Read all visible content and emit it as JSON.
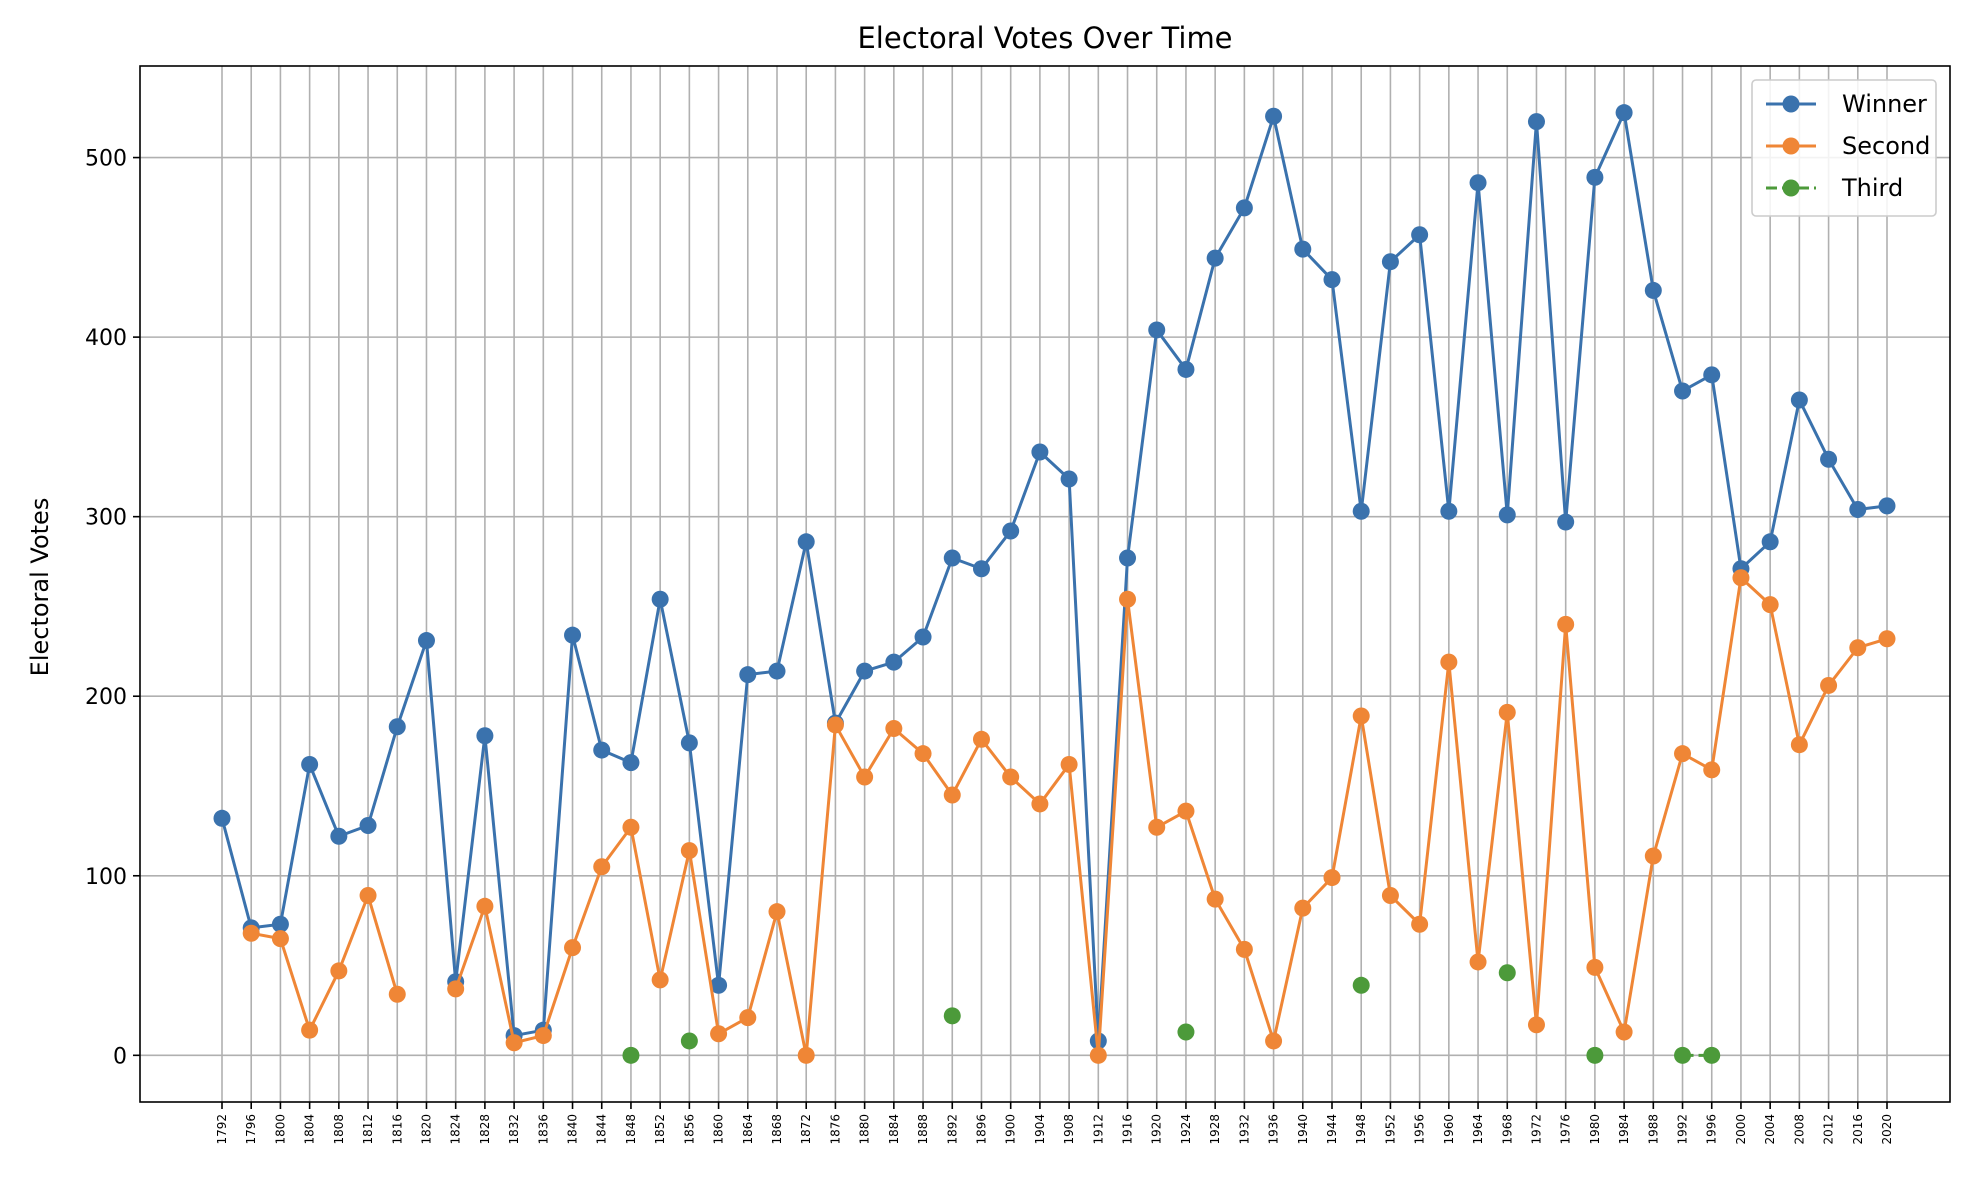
{
  "chart_data": {
    "type": "line",
    "title": "Electoral Votes Over Time",
    "xlabel": "",
    "ylabel": "Electoral Votes",
    "ylim": [
      -26,
      551
    ],
    "yticks": [
      0,
      100,
      200,
      300,
      400,
      500
    ],
    "grid": true,
    "legend_position": "top-right",
    "x": [
      1792,
      1796,
      1800,
      1804,
      1808,
      1812,
      1816,
      1820,
      1824,
      1828,
      1832,
      1836,
      1840,
      1844,
      1848,
      1852,
      1856,
      1860,
      1864,
      1868,
      1872,
      1876,
      1880,
      1884,
      1888,
      1892,
      1896,
      1900,
      1904,
      1908,
      1912,
      1916,
      1920,
      1924,
      1928,
      1932,
      1936,
      1940,
      1944,
      1948,
      1952,
      1956,
      1960,
      1964,
      1968,
      1972,
      1976,
      1980,
      1984,
      1988,
      1992,
      1996,
      2000,
      2004,
      2008,
      2012,
      2016,
      2020
    ],
    "series": [
      {
        "name": "Winner",
        "color": "#3a72ad",
        "linestyle": "solid",
        "values": [
          132,
          71,
          73,
          162,
          122,
          128,
          183,
          231,
          41,
          178,
          11,
          14,
          234,
          170,
          163,
          254,
          174,
          39,
          212,
          214,
          286,
          185,
          214,
          219,
          233,
          277,
          271,
          292,
          336,
          321,
          8,
          277,
          404,
          382,
          444,
          472,
          523,
          449,
          432,
          303,
          442,
          457,
          303,
          486,
          301,
          520,
          297,
          489,
          525,
          426,
          370,
          379,
          271,
          286,
          365,
          332,
          304,
          306
        ]
      },
      {
        "name": "Second",
        "color": "#ef8636",
        "linestyle": "solid",
        "values": [
          null,
          68,
          65,
          14,
          47,
          89,
          34,
          null,
          37,
          83,
          7,
          11,
          60,
          105,
          127,
          42,
          114,
          12,
          21,
          80,
          0,
          184,
          155,
          182,
          168,
          145,
          176,
          155,
          140,
          162,
          0,
          254,
          127,
          136,
          87,
          59,
          8,
          82,
          99,
          189,
          89,
          73,
          219,
          52,
          191,
          17,
          240,
          49,
          13,
          111,
          168,
          159,
          266,
          251,
          173,
          206,
          227,
          232
        ]
      },
      {
        "name": "Third",
        "color": "#4c9a3a",
        "linestyle": "dashed",
        "values": [
          null,
          null,
          null,
          null,
          null,
          null,
          null,
          null,
          null,
          null,
          null,
          null,
          null,
          null,
          0,
          null,
          8,
          null,
          null,
          null,
          null,
          null,
          null,
          null,
          null,
          22,
          null,
          null,
          null,
          null,
          null,
          null,
          null,
          13,
          null,
          null,
          null,
          null,
          null,
          39,
          null,
          null,
          null,
          null,
          46,
          null,
          null,
          0,
          null,
          null,
          0,
          0,
          null,
          null,
          null,
          null,
          null,
          null
        ]
      }
    ]
  }
}
